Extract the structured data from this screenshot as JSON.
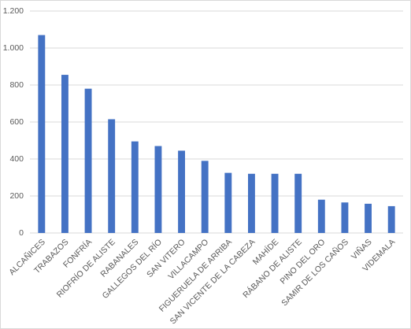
{
  "chart_data": {
    "type": "bar",
    "categories": [
      "ALCAÑICES",
      "TRABAZOS",
      "FONFRÍA",
      "RIOFRÍO DE ALISTE",
      "RABANALES",
      "GALLEGOS DEL RÍO",
      "SAN VITERO",
      "VILLACAMPO",
      "FIGUERUELA DE ARRIBA",
      "SAN VICENTE DE LA CABEZA",
      "MAHÍDE",
      "RÁBANO DE ALISTE",
      "PINO DEL ORO",
      "SAMIR DE LOS CAÑOS",
      "VIÑAS",
      "VIDEMALA"
    ],
    "values": [
      1070,
      855,
      780,
      615,
      495,
      470,
      445,
      390,
      325,
      320,
      320,
      320,
      180,
      165,
      158,
      145
    ],
    "color": "#4472c4",
    "ylim": [
      0,
      1200
    ],
    "yticks": [
      0,
      200,
      400,
      600,
      800,
      {
        "value": 1000,
        "label": "1.000"
      },
      {
        "value": 1200,
        "label": "1.200"
      }
    ],
    "grid": true
  }
}
